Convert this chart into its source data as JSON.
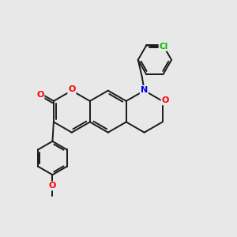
{
  "background_color": "#e8e8e8",
  "bond_color": "#1a1a1a",
  "atom_colors": {
    "O": "#ff0000",
    "N": "#0000ee",
    "Cl": "#00bb00",
    "C": "#1a1a1a"
  },
  "bond_width": 1.4,
  "figsize": [
    3.0,
    3.0
  ],
  "dpi": 100
}
